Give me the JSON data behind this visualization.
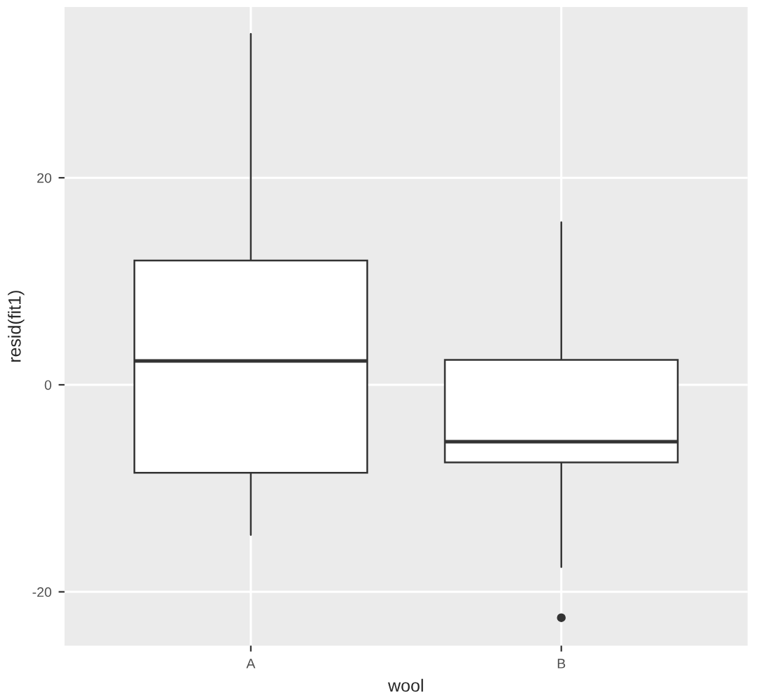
{
  "chart_data": {
    "type": "box",
    "xlabel": "wool",
    "ylabel": "resid(fit1)",
    "categories": [
      "A",
      "B"
    ],
    "boxes": [
      {
        "low": -14.5,
        "q1": -8.5,
        "median": 2.3,
        "q3": 12.0,
        "high": 33.9
      },
      {
        "low": -17.6,
        "q1": -7.5,
        "median": -5.5,
        "q3": 2.4,
        "high": 15.7,
        "outliers": [
          -22.5
        ]
      }
    ],
    "ylim": [
      -25.2,
      36.5
    ],
    "yticks": [
      -20,
      0,
      20
    ],
    "grid": true
  }
}
